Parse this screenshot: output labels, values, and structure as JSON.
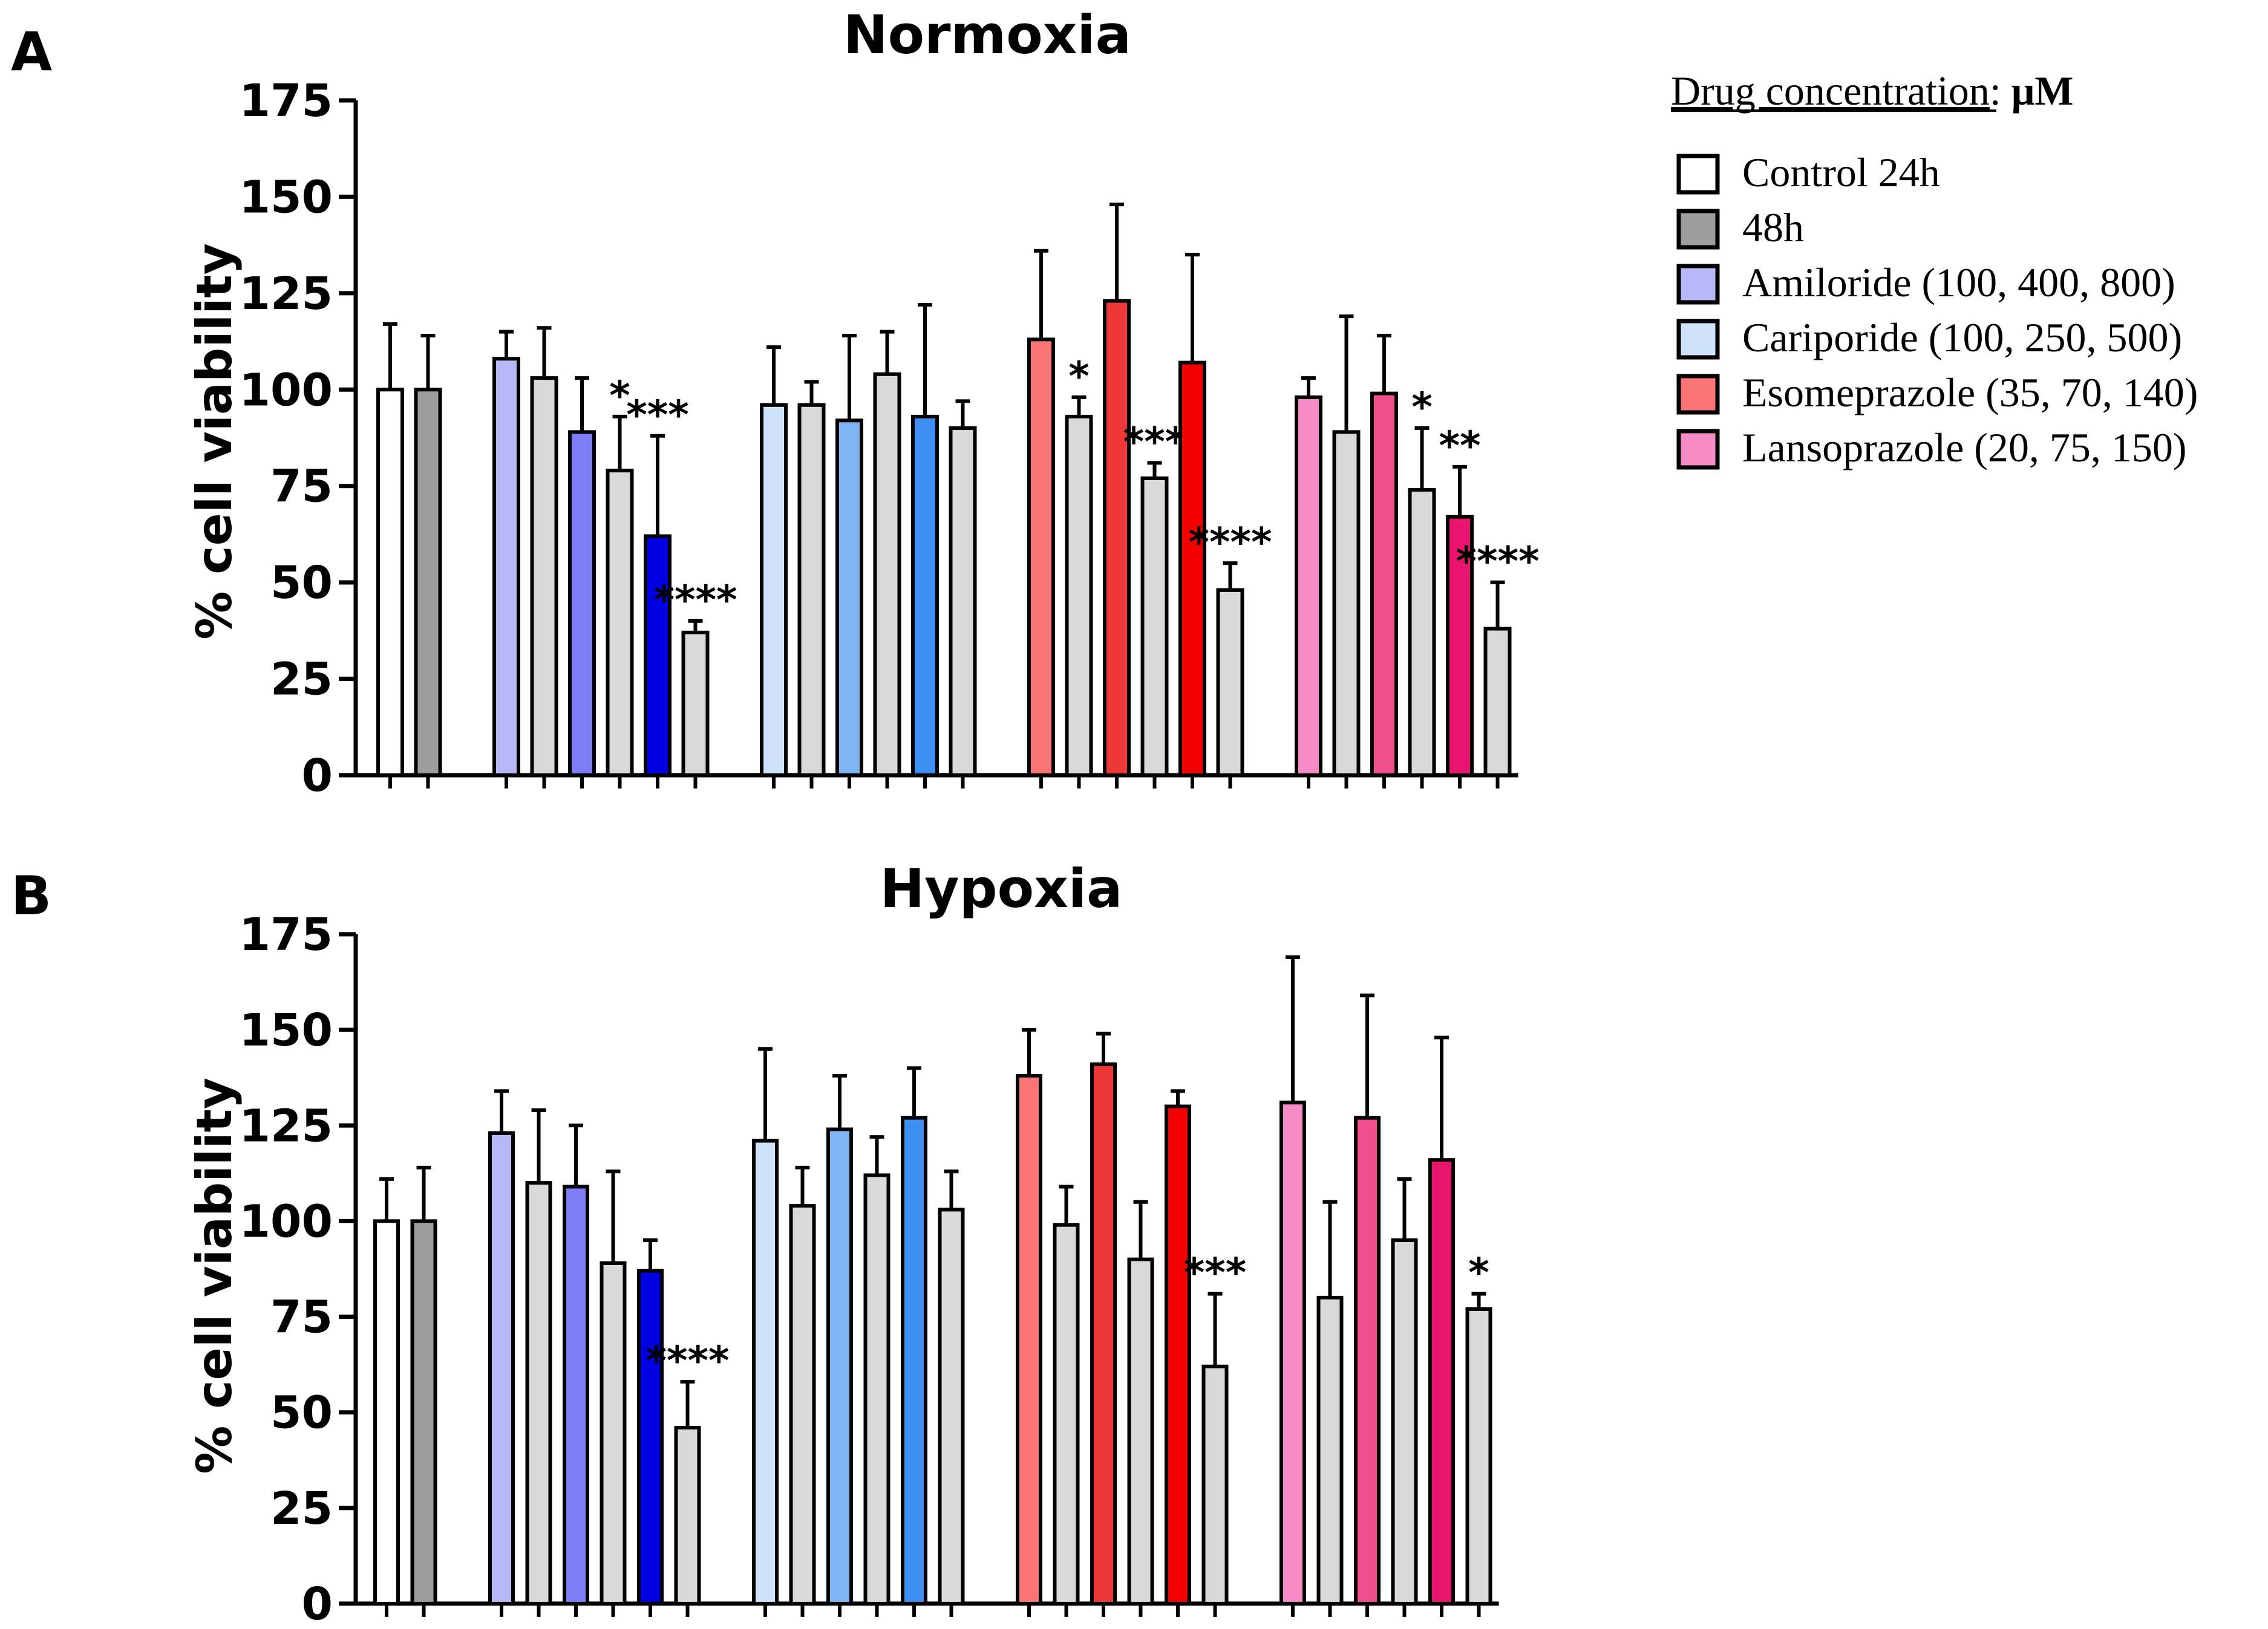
{
  "panel_letters": {
    "a": "A",
    "b": "B"
  },
  "legend": {
    "title": "Drug concentration",
    "title_sep": ": ",
    "unit": "μM",
    "items": [
      {
        "label": "Control 24h",
        "color": "#ffffff"
      },
      {
        "label": "48h",
        "color": "#9d9d9d"
      },
      {
        "label": "Amiloride (100, 400, 800)",
        "color": "#b8b8f8"
      },
      {
        "label": "Cariporide (100, 250, 500)",
        "color": "#cfe2fb"
      },
      {
        "label": "Esomeprazole (35, 70, 140)",
        "color": "#fa7676"
      },
      {
        "label": "Lansoprazole (20, 75, 150)",
        "color": "#f58cc7"
      }
    ]
  },
  "chart_data": [
    {
      "type": "bar",
      "title": "Normoxia",
      "ylabel": "% cell viability",
      "xlabel": "",
      "ylim": [
        0,
        175
      ],
      "yticks": [
        0,
        25,
        50,
        75,
        100,
        125,
        150,
        175
      ],
      "grid": false,
      "bar_colors": [
        "#ffffff",
        "#9d9d9d",
        "#b8b8f8",
        "#d9d9d9",
        "#7d7df5",
        "#d9d9d9",
        "#0000e0",
        "#d9d9d9",
        "#cfe2fb",
        "#d9d9d9",
        "#7fb4f2",
        "#d9d9d9",
        "#3d8ef0",
        "#d9d9d9",
        "#fa7676",
        "#d9d9d9",
        "#ee3838",
        "#d9d9d9",
        "#f50000",
        "#d9d9d9",
        "#f58cc7",
        "#d9d9d9",
        "#ef4f8c",
        "#d9d9d9",
        "#e8146e",
        "#d9d9d9"
      ],
      "values": [
        100,
        100,
        108,
        103,
        89,
        79,
        62,
        37,
        96,
        96,
        92,
        104,
        93,
        90,
        113,
        93,
        123,
        77,
        107,
        48,
        98,
        89,
        99,
        74,
        67,
        38
      ],
      "errors": [
        17,
        14,
        7,
        13,
        14,
        14,
        26,
        3,
        15,
        6,
        22,
        11,
        29,
        7,
        23,
        5,
        25,
        4,
        28,
        7,
        5,
        30,
        15,
        16,
        13,
        12
      ],
      "annotations": [
        "",
        "",
        "",
        "",
        "",
        "*",
        "***",
        "****",
        "",
        "",
        "",
        "",
        "",
        "",
        "",
        "*",
        "",
        "***",
        "",
        "****",
        "",
        "",
        "",
        "*",
        "**",
        "****"
      ]
    },
    {
      "type": "bar",
      "title": "Hypoxia",
      "ylabel": "% cell viability",
      "xlabel": "",
      "ylim": [
        0,
        175
      ],
      "yticks": [
        0,
        25,
        50,
        75,
        100,
        125,
        150,
        175
      ],
      "grid": false,
      "bar_colors": [
        "#ffffff",
        "#9d9d9d",
        "#b8b8f8",
        "#d9d9d9",
        "#7d7df5",
        "#d9d9d9",
        "#0000e0",
        "#d9d9d9",
        "#cfe2fb",
        "#d9d9d9",
        "#7fb4f2",
        "#d9d9d9",
        "#3d8ef0",
        "#d9d9d9",
        "#fa7676",
        "#d9d9d9",
        "#ee3838",
        "#d9d9d9",
        "#f50000",
        "#d9d9d9",
        "#f58cc7",
        "#d9d9d9",
        "#ef4f8c",
        "#d9d9d9",
        "#e8146e",
        "#d9d9d9"
      ],
      "values": [
        100,
        100,
        123,
        110,
        109,
        89,
        87,
        46,
        121,
        104,
        124,
        112,
        127,
        103,
        138,
        99,
        141,
        90,
        130,
        62,
        131,
        80,
        127,
        95,
        116,
        77
      ],
      "errors": [
        11,
        14,
        11,
        19,
        16,
        24,
        8,
        12,
        24,
        10,
        14,
        10,
        13,
        10,
        12,
        10,
        8,
        15,
        4,
        19,
        38,
        25,
        32,
        16,
        32,
        4
      ],
      "annotations": [
        "",
        "",
        "",
        "",
        "",
        "",
        "",
        "****",
        "",
        "",
        "",
        "",
        "",
        "",
        "",
        "",
        "",
        "",
        "",
        "***",
        "",
        "",
        "",
        "",
        "",
        "*"
      ]
    }
  ]
}
